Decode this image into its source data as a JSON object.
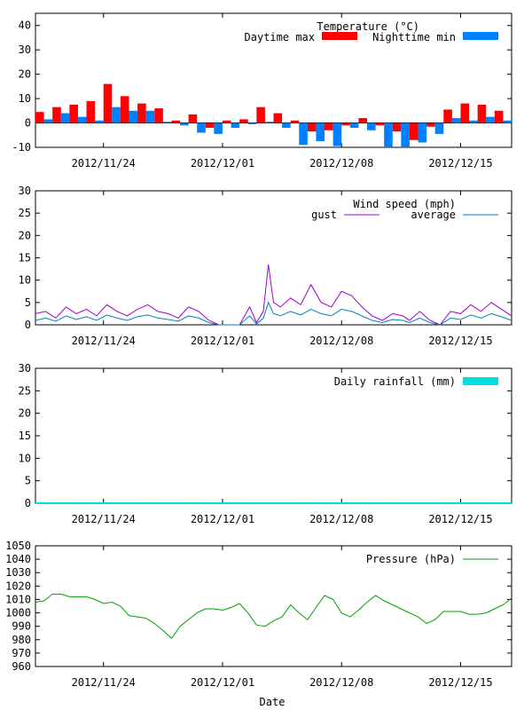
{
  "figure": {
    "xlabel": "Date"
  },
  "x_ticks": [
    "2012/11/24",
    "2012/12/01",
    "2012/12/08",
    "2012/12/15"
  ],
  "chart_data": [
    {
      "type": "bar",
      "title": "Temperature (°C)",
      "xlabel": "Date",
      "ylim": [
        -10,
        45
      ],
      "yticks": [
        -10,
        0,
        10,
        20,
        30,
        40
      ],
      "x_start": "2012/11/20",
      "x_end": "2012/12/18",
      "legend_position": "top-right",
      "series": [
        {
          "name": "Daytime max",
          "color": "#ff0000",
          "values": [
            4.5,
            6.5,
            7.5,
            9.0,
            16.0,
            11.0,
            8.0,
            6.0,
            1.0,
            3.5,
            -2.0,
            1.0,
            1.5,
            6.5,
            4.0,
            1.0,
            -3.5,
            -3.0,
            -1.0,
            2.0,
            -1.0,
            -3.5,
            -7.0,
            -1.5,
            5.5,
            8.0,
            7.5,
            5.0
          ]
        },
        {
          "name": "Nighttime min",
          "color": "#0080ff",
          "values": [
            1.5,
            4.0,
            2.5,
            1.0,
            6.5,
            5.0,
            5.0,
            0.5,
            -1.0,
            -4.0,
            -4.5,
            -2.0,
            -0.5,
            0.5,
            -2.0,
            -9.0,
            -7.5,
            -9.5,
            -2.0,
            -3.0,
            -10.0,
            -10.0,
            -8.0,
            -4.5,
            2.0,
            1.0,
            2.5,
            1.0
          ]
        }
      ]
    },
    {
      "type": "line",
      "title": "Wind speed (mph)",
      "xlabel": "Date",
      "ylim": [
        0,
        30
      ],
      "yticks": [
        0,
        5,
        10,
        15,
        20,
        25,
        30
      ],
      "series": [
        {
          "name": "gust",
          "color": "#a000d0",
          "x_days": [
            0,
            0.6,
            1.2,
            1.8,
            2.4,
            3.0,
            3.6,
            4.2,
            4.8,
            5.4,
            6.0,
            6.6,
            7.2,
            7.8,
            8.4,
            9.0,
            9.6,
            10.2,
            10.8,
            11.4,
            11.7,
            12.0,
            12.6,
            13.0,
            13.4,
            13.7,
            14.0,
            14.4,
            15.0,
            15.6,
            16.2,
            16.8,
            17.4,
            18.0,
            18.6,
            19.2,
            19.8,
            20.4,
            21.0,
            21.6,
            22.0,
            22.6,
            23.2,
            23.8,
            24.4,
            25.0,
            25.6,
            26.2,
            26.8,
            27.4,
            28.0
          ],
          "values": [
            2.5,
            3.0,
            1.5,
            4.0,
            2.5,
            3.5,
            2.0,
            4.5,
            3.0,
            2.0,
            3.5,
            4.5,
            3.0,
            2.5,
            1.5,
            4.0,
            3.0,
            1.0,
            0,
            0,
            0,
            0,
            4.0,
            0.5,
            3.0,
            13.5,
            5.0,
            4.0,
            6.0,
            4.5,
            9.0,
            5.0,
            4.0,
            7.5,
            6.5,
            4.0,
            2.0,
            1.0,
            2.5,
            2.0,
            1.0,
            3.0,
            1.0,
            0,
            3.0,
            2.5,
            4.5,
            3.0,
            5.0,
            3.5,
            2.0
          ]
        },
        {
          "name": "average",
          "color": "#0080c0",
          "x_days": [
            0,
            0.6,
            1.2,
            1.8,
            2.4,
            3.0,
            3.6,
            4.2,
            4.8,
            5.4,
            6.0,
            6.6,
            7.2,
            7.8,
            8.4,
            9.0,
            9.6,
            10.2,
            10.8,
            11.4,
            11.7,
            12.0,
            12.6,
            13.0,
            13.4,
            13.7,
            14.0,
            14.4,
            15.0,
            15.6,
            16.2,
            16.8,
            17.4,
            18.0,
            18.6,
            19.2,
            19.8,
            20.4,
            21.0,
            21.6,
            22.0,
            22.6,
            23.2,
            23.8,
            24.4,
            25.0,
            25.6,
            26.2,
            26.8,
            27.4,
            28.0
          ],
          "values": [
            1.0,
            1.5,
            0.8,
            2.0,
            1.2,
            1.8,
            1.0,
            2.2,
            1.5,
            1.0,
            1.8,
            2.2,
            1.5,
            1.2,
            0.8,
            2.0,
            1.5,
            0.5,
            0,
            0,
            0,
            0,
            2.0,
            0.2,
            1.5,
            5.0,
            2.5,
            2.0,
            3.0,
            2.2,
            3.5,
            2.5,
            2.0,
            3.5,
            3.0,
            2.0,
            1.0,
            0.5,
            1.2,
            1.0,
            0.5,
            1.5,
            0.5,
            0,
            1.5,
            1.2,
            2.2,
            1.5,
            2.5,
            1.8,
            1.0
          ]
        }
      ]
    },
    {
      "type": "bar",
      "title": "Daily rainfall (mm)",
      "xlabel": "Date",
      "ylim": [
        0,
        30
      ],
      "yticks": [
        0,
        5,
        10,
        15,
        20,
        25,
        30
      ],
      "series": [
        {
          "name": "Daily rainfall (mm)",
          "color": "#00e0e0",
          "values": [
            0,
            0,
            0,
            0,
            0,
            0,
            0,
            0,
            0,
            0,
            0,
            0,
            0,
            0,
            0,
            0,
            0,
            0,
            0,
            0,
            0,
            0,
            0,
            0,
            0,
            0,
            0,
            0
          ]
        }
      ]
    },
    {
      "type": "line",
      "title": "Pressure (hPa)",
      "xlabel": "Date",
      "ylim": [
        960,
        1050
      ],
      "yticks": [
        960,
        970,
        980,
        990,
        1000,
        1010,
        1020,
        1030,
        1040,
        1050
      ],
      "series": [
        {
          "name": "Pressure (hPa)",
          "color": "#00a000",
          "x_days": [
            0,
            0.5,
            1.0,
            1.5,
            2.0,
            2.5,
            3.0,
            3.5,
            4.0,
            4.5,
            5.0,
            5.5,
            6.0,
            6.5,
            7.0,
            7.5,
            8.0,
            8.5,
            9.0,
            9.5,
            10.0,
            10.5,
            11.0,
            11.5,
            12.0,
            12.5,
            13.0,
            13.5,
            14.0,
            14.5,
            15.0,
            15.5,
            16.0,
            16.5,
            17.0,
            17.5,
            18.0,
            18.5,
            19.0,
            19.5,
            20.0,
            20.5,
            21.0,
            21.5,
            22.0,
            22.5,
            23.0,
            23.5,
            24.0,
            24.5,
            25.0,
            25.5,
            26.0,
            26.5,
            27.0,
            27.5,
            28.0
          ],
          "values": [
            1008,
            1009,
            1014,
            1014,
            1012,
            1012,
            1012,
            1010,
            1007,
            1008,
            1005,
            998,
            997,
            996,
            992,
            987,
            981,
            990,
            995,
            1000,
            1003,
            1003,
            1002,
            1004,
            1007,
            1000,
            991,
            990,
            994,
            997,
            1006,
            1000,
            995,
            1004,
            1013,
            1010,
            1000,
            997,
            1002,
            1008,
            1013,
            1009,
            1006,
            1003,
            1000,
            997,
            992,
            995,
            1001,
            1001,
            1001,
            999,
            999,
            1000,
            1003,
            1006,
            1011
          ]
        }
      ]
    }
  ]
}
